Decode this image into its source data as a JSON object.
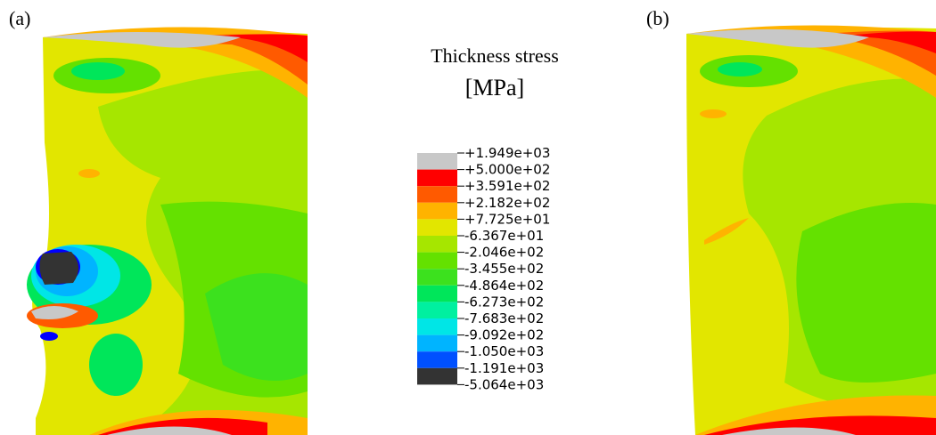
{
  "panels": [
    {
      "label": "(a)"
    },
    {
      "label": "(b)"
    }
  ],
  "legend": {
    "title": "Thickness stress",
    "unit": "[MPa]",
    "labels": [
      "+1.949e+03",
      "+5.000e+02",
      "+3.591e+02",
      "+2.182e+02",
      "+7.725e+01",
      "-6.367e+01",
      "-2.046e+02",
      "-3.455e+02",
      "-4.864e+02",
      "-6.273e+02",
      "-7.683e+02",
      "-9.092e+02",
      "-1.050e+03",
      "-1.191e+03",
      "-5.064e+03"
    ],
    "colors": [
      "#c8c8c8",
      "#ff0000",
      "#ff5a00",
      "#ffb300",
      "#e2e600",
      "#a6e600",
      "#64e100",
      "#3ce11e",
      "#00e65a",
      "#00f0a0",
      "#00e6e6",
      "#00b4ff",
      "#0050ff",
      "#333333"
    ]
  }
}
